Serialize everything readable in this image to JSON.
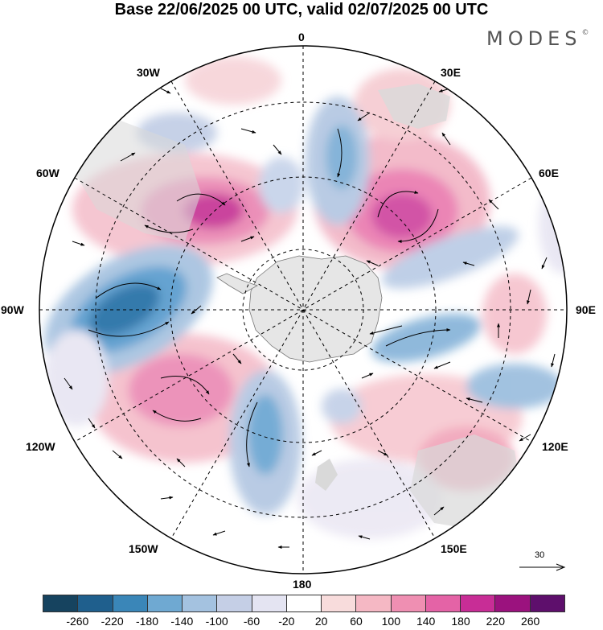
{
  "header": {
    "title": "Base 22/06/2025 00 UTC, valid 02/07/2025 00 UTC",
    "brand": "MODES",
    "brand_mark": "©"
  },
  "map": {
    "projection": "south-polar-stereographic",
    "longitude_labels": {
      "lon_0": "0",
      "lon_30e": "30E",
      "lon_60e": "60E",
      "lon_90e": "90E",
      "lon_120e": "120E",
      "lon_150e": "150E",
      "lon_180": "180",
      "lon_150w": "150W",
      "lon_120w": "120W",
      "lon_90w": "90W",
      "lon_60w": "60W",
      "lon_30w": "30W"
    },
    "reference_vector": "30"
  },
  "colorbar": {
    "colors": [
      "#16435f",
      "#1f5f8d",
      "#3a86b8",
      "#6fa9d2",
      "#a4c2e0",
      "#c5cfe6",
      "#e4e4f2",
      "#ffffff",
      "#f8dcdc",
      "#f5b8c4",
      "#ef8fb2",
      "#e463a6",
      "#c82d96",
      "#9b127e",
      "#5e0f6c"
    ],
    "tick_labels": [
      "-260",
      "-220",
      "-180",
      "-140",
      "-100",
      "-60",
      "-20",
      "20",
      "60",
      "100",
      "140",
      "180",
      "220",
      "260"
    ]
  }
}
